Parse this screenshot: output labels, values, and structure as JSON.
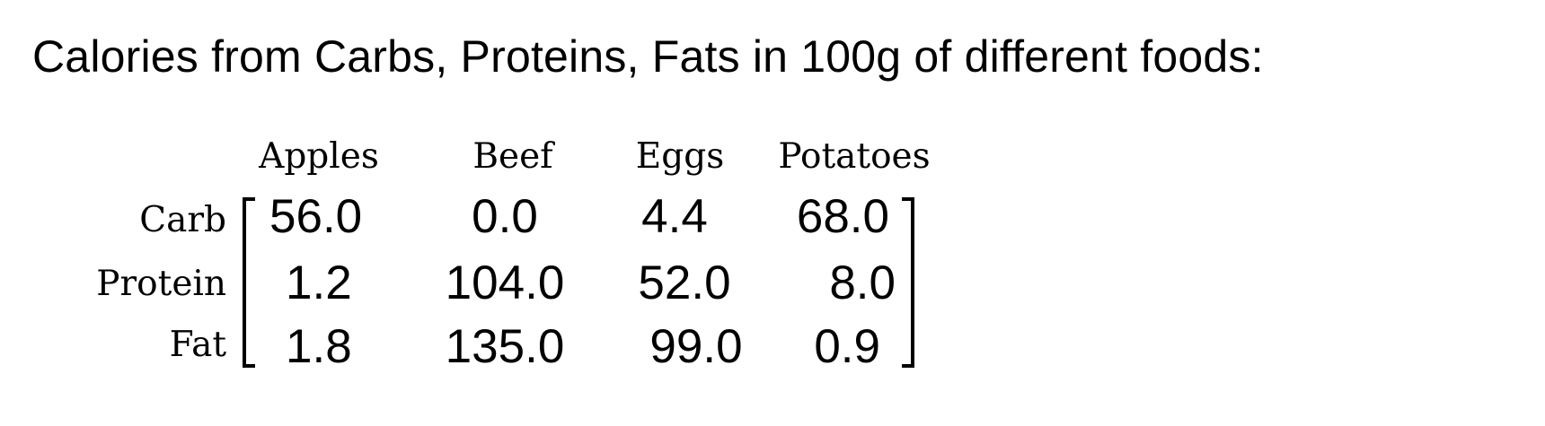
{
  "title": "Calories from Carbs, Proteins, Fats in 100g of different foods:",
  "columns": [
    "Apples",
    "Beef",
    "Eggs",
    "Potatoes"
  ],
  "rows": [
    {
      "label": "Carb",
      "values": [
        "56.0",
        "0.0",
        "4.4",
        "68.0"
      ]
    },
    {
      "label": "Protein",
      "values": [
        "1.2",
        "104.0",
        "52.0",
        "8.0"
      ]
    },
    {
      "label": "Fat",
      "values": [
        "1.8",
        "135.0",
        "99.0",
        "0.9"
      ]
    }
  ]
}
